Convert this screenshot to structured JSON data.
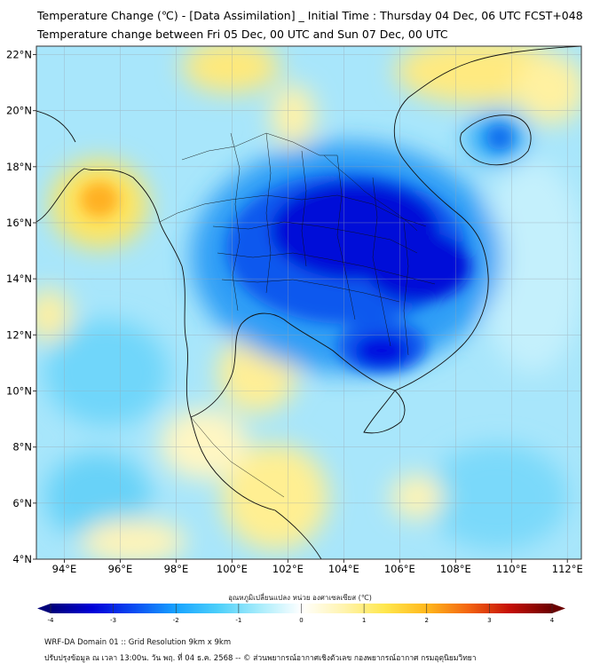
{
  "header": {
    "title_line1": "Temperature Change (℃) - [Data Assimilation] _ Initial Time : Thursday 04 Dec, 06 UTC FCST+048",
    "title_line2": "Temperature change between Fri 05 Dec, 00 UTC and Sun 07 Dec, 00 UTC"
  },
  "map": {
    "lon_ticks": [
      "94°E",
      "96°E",
      "98°E",
      "100°E",
      "102°E",
      "104°E",
      "106°E",
      "108°E",
      "110°E",
      "112°E"
    ],
    "lat_ticks": [
      "22°N",
      "20°N",
      "18°N",
      "16°N",
      "14°N",
      "12°N",
      "10°N",
      "8°N",
      "6°N",
      "4°N"
    ],
    "lon_values": [
      94,
      96,
      98,
      100,
      102,
      104,
      106,
      108,
      110,
      112
    ],
    "lat_values": [
      22,
      20,
      18,
      16,
      14,
      12,
      10,
      8,
      6,
      4
    ],
    "extent": {
      "lon_min": 93,
      "lon_max": 112.5,
      "lat_min": 4,
      "lat_max": 22.3
    }
  },
  "colorbar": {
    "label": "อุณหภูมิเปลี่ยนแปลง หน่วย องศาเซลเซียส (℃)",
    "tick_labels": [
      "-4",
      "-3",
      "-2",
      "-1",
      "0",
      "1",
      "2",
      "3",
      "4"
    ],
    "tick_values": [
      -4,
      -3,
      -2,
      -1,
      0,
      1,
      2,
      3,
      4
    ],
    "colors": [
      "#00007a",
      "#0000d8",
      "#0a4cf2",
      "#17a3ff",
      "#4ccffa",
      "#a8ecfb",
      "#ffffff",
      "#fff4b0",
      "#ffe74d",
      "#ffb81c",
      "#f36410",
      "#c40e06",
      "#6b0000"
    ]
  },
  "footer": {
    "line1": "WRF-DA Domain 01 :: Grid Resolution 9km x 9km",
    "line2": "ปรับปรุงข้อมูล ณ เวลา 13:00น. วัน พฤ. ที่ 04 ธ.ค. 2568 -- © ส่วนพยากรณ์อากาศเชิงตัวเลข กองพยากรณ์อากาศ กรมอุตุนิยมวิทยา"
  }
}
